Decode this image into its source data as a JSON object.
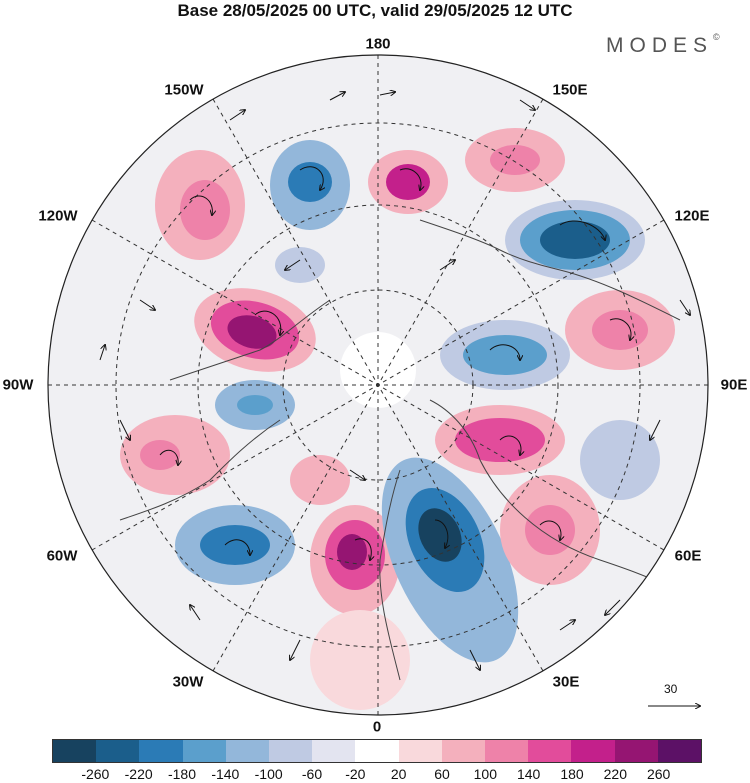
{
  "title": "Base 28/05/2025 00 UTC, valid 29/05/2025 12 UTC",
  "brand": "MODES",
  "brand_mark": "©",
  "longitude_labels": {
    "top": "180",
    "bottom": "0",
    "left": "90W",
    "right": "90E",
    "upper_left_1": "150W",
    "upper_left_2": "120W",
    "upper_right_1": "150E",
    "upper_right_2": "120E",
    "lower_left_1": "60W",
    "lower_left_2": "30W",
    "lower_right_1": "60E",
    "lower_right_2": "30E"
  },
  "vector_reference": "30",
  "colorbar": {
    "colors": [
      "#17425f",
      "#1b5e8b",
      "#2b7bb6",
      "#5b9fcc",
      "#93b7da",
      "#bfcae3",
      "#e3e4f0",
      "#ffffff",
      "#f9d9dc",
      "#f4b0bd",
      "#ee82a9",
      "#e24c9b",
      "#c3208b",
      "#951572",
      "#5c1166"
    ],
    "ticks": [
      "-260",
      "-220",
      "-180",
      "-140",
      "-100",
      "-60",
      "-20",
      "20",
      "60",
      "100",
      "140",
      "180",
      "220",
      "260"
    ]
  }
}
